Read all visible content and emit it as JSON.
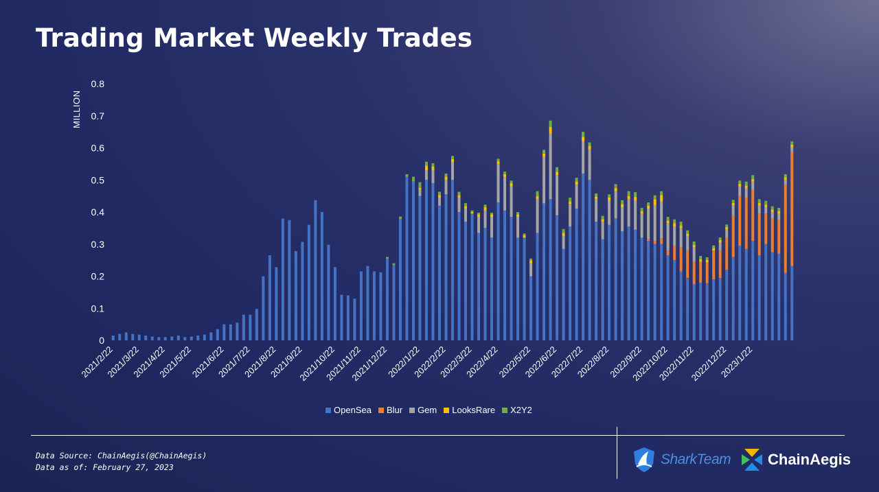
{
  "page": {
    "title": "Trading Market Weekly Trades"
  },
  "chart_data": {
    "type": "bar",
    "stacked": true,
    "title": "Trading Market Weekly Trades",
    "ylabel": "MILLION",
    "xlabel": "",
    "ylim": [
      0,
      0.8
    ],
    "yticks": [
      "0",
      "0.1",
      "0.2",
      "0.3",
      "0.4",
      "0.5",
      "0.6",
      "0.7",
      "0.8"
    ],
    "xtick_labels": [
      "2021/2/22",
      "2021/3/22",
      "2021/4/22",
      "2021/5/22",
      "2021/6/22",
      "2021/7/22",
      "2021/8/22",
      "2021/9/22",
      "2021/10/22",
      "2021/11/22",
      "2021/12/22",
      "2022/1/22",
      "2022/2/22",
      "2022/3/22",
      "2022/4/22",
      "2022/5/22",
      "2022/6/22",
      "2022/7/22",
      "2022/8/22",
      "2022/9/22",
      "2022/10/22",
      "2022/11/22",
      "2022/12/22",
      "2023/1/22"
    ],
    "xtick_index": [
      0,
      4,
      8,
      12,
      17,
      21,
      25,
      29,
      34,
      38,
      42,
      47,
      51,
      55,
      59,
      64,
      68,
      72,
      76,
      81,
      85,
      89,
      94,
      98
    ],
    "colors": {
      "OpenSea": "#4472c4",
      "Blur": "#ed7d31",
      "Gem": "#a5a5a5",
      "LooksRare": "#ffc000",
      "X2Y2": "#70ad47"
    },
    "legend": [
      "OpenSea",
      "Blur",
      "Gem",
      "LooksRare",
      "X2Y2"
    ],
    "legend_position": "bottom",
    "series": [
      {
        "name": "OpenSea",
        "values": [
          0.015,
          0.02,
          0.025,
          0.02,
          0.018,
          0.015,
          0.012,
          0.01,
          0.01,
          0.012,
          0.015,
          0.01,
          0.012,
          0.015,
          0.018,
          0.025,
          0.035,
          0.05,
          0.05,
          0.055,
          0.08,
          0.08,
          0.098,
          0.2,
          0.265,
          0.228,
          0.38,
          0.375,
          0.278,
          0.307,
          0.36,
          0.437,
          0.4,
          0.298,
          0.228,
          0.142,
          0.14,
          0.13,
          0.215,
          0.232,
          0.215,
          0.212,
          0.255,
          0.235,
          0.378,
          0.51,
          0.495,
          0.45,
          0.5,
          0.49,
          0.42,
          0.455,
          0.5,
          0.4,
          0.37,
          0.395,
          0.335,
          0.35,
          0.32,
          0.43,
          0.405,
          0.385,
          0.32,
          0.32,
          0.2,
          0.335,
          0.427,
          0.44,
          0.39,
          0.285,
          0.355,
          0.41,
          0.52,
          0.5,
          0.37,
          0.315,
          0.36,
          0.38,
          0.34,
          0.355,
          0.345,
          0.32,
          0.31,
          0.3,
          0.3,
          0.265,
          0.25,
          0.215,
          0.195,
          0.175,
          0.18,
          0.178,
          0.19,
          0.195,
          0.22,
          0.26,
          0.295,
          0.285,
          0.31,
          0.265,
          0.3,
          0.275,
          0.27,
          0.21,
          0.232
        ]
      },
      {
        "name": "Blur",
        "values": [
          0,
          0,
          0,
          0,
          0,
          0,
          0,
          0,
          0,
          0,
          0,
          0,
          0,
          0,
          0,
          0,
          0,
          0,
          0,
          0,
          0,
          0,
          0,
          0,
          0,
          0,
          0,
          0,
          0,
          0,
          0,
          0,
          0,
          0,
          0,
          0,
          0,
          0,
          0,
          0,
          0,
          0,
          0,
          0,
          0,
          0,
          0,
          0,
          0,
          0,
          0,
          0,
          0,
          0,
          0,
          0,
          0,
          0,
          0,
          0,
          0,
          0,
          0,
          0,
          0,
          0,
          0,
          0,
          0,
          0,
          0,
          0,
          0,
          0,
          0,
          0,
          0,
          0,
          0,
          0,
          0,
          0,
          0.005,
          0.01,
          0.018,
          0.015,
          0.045,
          0.075,
          0.085,
          0.07,
          0.065,
          0.065,
          0.09,
          0.085,
          0.1,
          0.13,
          0.155,
          0.16,
          0.16,
          0.13,
          0.095,
          0.105,
          0.105,
          0.275,
          0.355
        ]
      },
      {
        "name": "Gem",
        "values": [
          0,
          0,
          0,
          0,
          0,
          0,
          0,
          0,
          0,
          0,
          0,
          0,
          0,
          0,
          0,
          0,
          0,
          0,
          0,
          0,
          0,
          0,
          0,
          0,
          0,
          0,
          0,
          0,
          0,
          0,
          0,
          0,
          0,
          0,
          0,
          0,
          0,
          0,
          0,
          0,
          0,
          0,
          0,
          0,
          0,
          0,
          0,
          0.02,
          0.03,
          0.04,
          0.025,
          0.045,
          0.055,
          0.045,
          0.04,
          0.0,
          0.05,
          0.055,
          0.065,
          0.12,
          0.105,
          0.095,
          0.065,
          0.0,
          0.04,
          0.105,
          0.145,
          0.205,
          0.125,
          0.04,
          0.07,
          0.075,
          0.1,
          0.095,
          0.07,
          0.055,
          0.075,
          0.085,
          0.075,
          0.085,
          0.09,
          0.075,
          0.095,
          0.11,
          0.115,
          0.085,
          0.06,
          0.06,
          0.045,
          0.045,
          0.0,
          0.0,
          0.0,
          0.025,
          0.025,
          0.03,
          0.03,
          0.03,
          0.025,
          0.025,
          0.02,
          0.02,
          0.02,
          0.015,
          0.015
        ]
      },
      {
        "name": "LooksRare",
        "values": [
          0,
          0,
          0,
          0,
          0,
          0,
          0,
          0,
          0,
          0,
          0,
          0,
          0,
          0,
          0,
          0,
          0,
          0,
          0,
          0,
          0,
          0,
          0,
          0,
          0,
          0,
          0,
          0,
          0,
          0,
          0,
          0,
          0,
          0,
          0,
          0,
          0,
          0,
          0,
          0,
          0,
          0,
          0,
          0,
          0,
          0,
          0,
          0.005,
          0.015,
          0.012,
          0.008,
          0.01,
          0.01,
          0.008,
          0.008,
          0.005,
          0.008,
          0.01,
          0.008,
          0.008,
          0.008,
          0.01,
          0.008,
          0.008,
          0.01,
          0.01,
          0.01,
          0.02,
          0.01,
          0.01,
          0.008,
          0.01,
          0.015,
          0.012,
          0.008,
          0.008,
          0.01,
          0.01,
          0.01,
          0.01,
          0.012,
          0.008,
          0.01,
          0.02,
          0.02,
          0.008,
          0.01,
          0.008,
          0.008,
          0.008,
          0.008,
          0.008,
          0.008,
          0.008,
          0.008,
          0.008,
          0.008,
          0.008,
          0.008,
          0.008,
          0.008,
          0.008,
          0.008,
          0.008,
          0.008
        ]
      },
      {
        "name": "X2Y2",
        "values": [
          0,
          0,
          0,
          0,
          0,
          0,
          0,
          0,
          0,
          0,
          0,
          0,
          0,
          0,
          0,
          0,
          0,
          0,
          0,
          0,
          0,
          0,
          0,
          0,
          0,
          0,
          0,
          0,
          0,
          0,
          0,
          0,
          0,
          0,
          0,
          0,
          0,
          0,
          0,
          0,
          0,
          0,
          0.005,
          0.005,
          0.008,
          0.008,
          0.015,
          0.018,
          0.012,
          0.01,
          0.01,
          0.01,
          0.01,
          0.01,
          0.01,
          0.005,
          0.005,
          0.008,
          0.005,
          0.008,
          0.008,
          0.008,
          0.007,
          0.005,
          0.005,
          0.015,
          0.012,
          0.02,
          0.015,
          0.012,
          0.012,
          0.012,
          0.015,
          0.01,
          0.01,
          0.01,
          0.01,
          0.012,
          0.012,
          0.015,
          0.015,
          0.01,
          0.01,
          0.012,
          0.012,
          0.012,
          0.012,
          0.012,
          0.01,
          0.01,
          0.01,
          0.008,
          0.008,
          0.008,
          0.008,
          0.01,
          0.01,
          0.012,
          0.012,
          0.012,
          0.012,
          0.01,
          0.01,
          0.01,
          0.01
        ]
      }
    ]
  },
  "footer": {
    "source": "Data Source: ChainAegis(@ChainAegis)",
    "as_of": "Data as of: February 27, 2023"
  },
  "logos": {
    "shark": "SharkTeam",
    "chain": "ChainAegis"
  }
}
